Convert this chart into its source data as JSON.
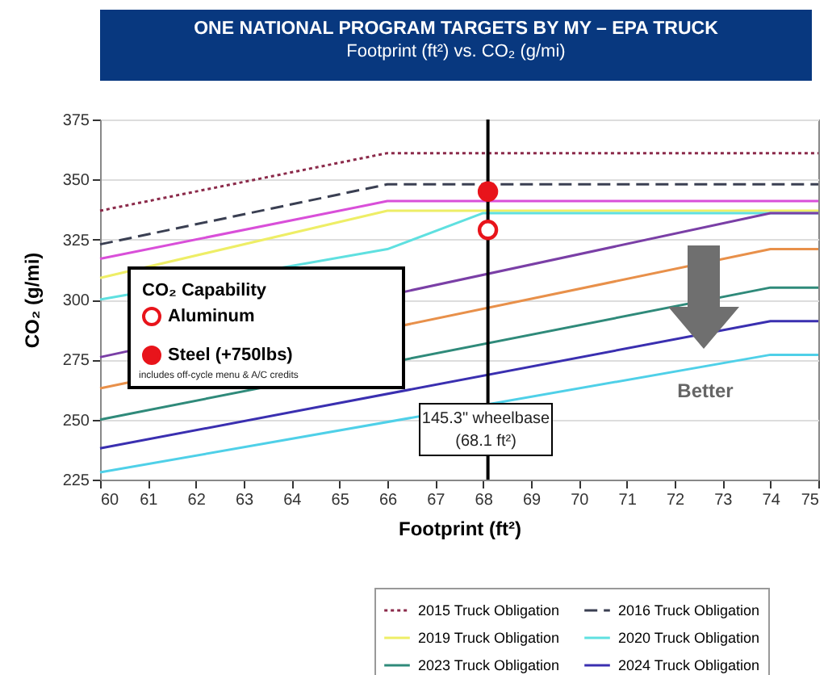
{
  "chart_data": {
    "type": "line",
    "title": "ONE NATIONAL PROGRAM TARGETS BY MY – EPA TRUCK",
    "subtitle": "Footprint (ft²) vs. CO₂ (g/mi)",
    "xlabel": "Footprint  (ft²)",
    "ylabel": "CO₂ (g/mi)",
    "legend_title": "CO₂ Capability",
    "xlim": [
      60,
      75
    ],
    "xticks": [
      60,
      61,
      62,
      63,
      64,
      65,
      66,
      67,
      68,
      69,
      70,
      71,
      72,
      73,
      74,
      75
    ],
    "ylim": [
      225,
      375
    ],
    "yticks": [
      225,
      250,
      275,
      300,
      325,
      350,
      375
    ],
    "grid": "y",
    "legend": "bottom right",
    "series": [
      {
        "name": "2015 Truck Obligation",
        "color": "#8b2a4a",
        "line_style": "dotted",
        "x": [
          60,
          66,
          75
        ],
        "values": [
          337,
          361,
          361
        ]
      },
      {
        "name": "2016 Truck Obligation",
        "color": "#3a3f52",
        "line_style": "dashed",
        "x": [
          60,
          66,
          75
        ],
        "values": [
          323,
          348,
          348
        ]
      },
      {
        "color": "#d94fd9",
        "line_style": "solid",
        "x": [
          60,
          66,
          75
        ],
        "values": [
          317,
          341,
          341
        ]
      },
      {
        "name": "2019 Truck Obligation",
        "color": "#eeee66",
        "line_style": "solid",
        "x": [
          60,
          66,
          75
        ],
        "values": [
          309,
          337,
          337
        ]
      },
      {
        "name": "2020 Truck Obligation",
        "color": "#5fe0e0",
        "line_style": "solid",
        "x": [
          60,
          66,
          68,
          75
        ],
        "values": [
          300,
          321,
          336,
          336
        ]
      },
      {
        "color": "#7a3fa6",
        "line_style": "solid",
        "x": [
          60,
          74,
          75
        ],
        "values": [
          276,
          336,
          336
        ]
      },
      {
        "color": "#e8904a",
        "line_style": "solid",
        "x": [
          60,
          74,
          75
        ],
        "values": [
          263,
          321,
          321
        ]
      },
      {
        "name": "2023 Truck Obligation",
        "color": "#2f8a7a",
        "line_style": "solid",
        "x": [
          60,
          74,
          75
        ],
        "values": [
          250,
          305,
          305
        ]
      },
      {
        "name": "2024 Truck Obligation",
        "color": "#3a2fb0",
        "line_style": "solid",
        "x": [
          60,
          74,
          75
        ],
        "values": [
          238,
          291,
          291
        ]
      },
      {
        "color": "#4fd0e8",
        "line_style": "solid",
        "x": [
          60,
          74,
          75
        ],
        "values": [
          228,
          277,
          277
        ]
      },
      {
        "name": "Aluminum",
        "type": "scatter",
        "marker": "circle",
        "color": "#e8141b",
        "x": [
          68.1
        ],
        "values": [
          329
        ]
      },
      {
        "name": "Steel (+750lbs)",
        "type": "scatter",
        "marker": "circle",
        "color": "#e8141b",
        "x": [
          68.1
        ],
        "values": [
          345
        ]
      }
    ],
    "ref_lines": [
      {
        "axis": "x",
        "value": 68.1,
        "color": "#000000"
      }
    ],
    "annotations": [
      "145.3\" wheelbase",
      "(68.1 ft²)",
      "Better",
      "includes off-cycle menu & A/C credits"
    ]
  }
}
